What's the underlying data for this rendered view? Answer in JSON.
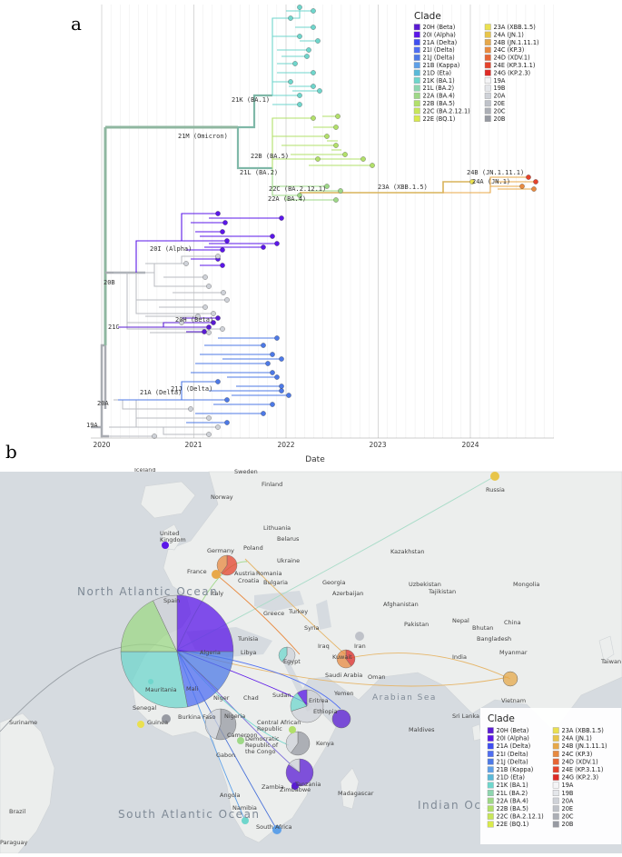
{
  "figure": {
    "panel_a_letter": "a",
    "panel_b_letter": "b"
  },
  "colors": {
    "20H (Beta)": "#5a1bd3",
    "20I (Alpha)": "#5b17e8",
    "21A (Delta)": "#3f4ff0",
    "21I (Delta)": "#4f6ef2",
    "21J (Delta)": "#4d79e6",
    "21B (Kappa)": "#5ea0e8",
    "21D (Eta)": "#5ab9d8",
    "21K (BA.1)": "#6fd6cc",
    "21L (BA.2)": "#8ed6b0",
    "22A (BA.4)": "#9ed887",
    "22B (BA.5)": "#b2e06a",
    "22C (BA.2.12.1)": "#c8e65a",
    "22E (BQ.1)": "#d9ea4c",
    "23A (XBB.1.5)": "#eae050",
    "24A (JN.1)": "#e8c54a",
    "24B (JN.1.11.1)": "#e6a84a",
    "24C (KP.3)": "#e88a40",
    "24D (XDV.1)": "#e76535",
    "24E (KP.3.1.1)": "#e5432c",
    "24G (KP.2.3)": "#de2a25",
    "19A": "#f4f4f6",
    "19B": "#e4e6ea",
    "20A": "#cfd2d8",
    "20E": "#bfc2c9",
    "20C": "#acafb6",
    "20B": "#979aa2"
  },
  "chart_data": [
    {
      "type": "tree",
      "title": "",
      "xlabel": "Date",
      "ylabel": "",
      "x_ticks": [
        "2020",
        "2021",
        "2022",
        "2023",
        "2024"
      ],
      "legend_title": "Clade",
      "legend_placement": "top-right",
      "legend_entries": [
        "20H (Beta)",
        "20I (Alpha)",
        "21A (Delta)",
        "21I (Delta)",
        "21J (Delta)",
        "21B (Kappa)",
        "21D (Eta)",
        "21K (BA.1)",
        "21L (BA.2)",
        "22A (BA.4)",
        "22B (BA.5)",
        "22C (BA.2.12.1)",
        "22E (BQ.1)",
        "23A (XBB.1.5)",
        "24A (JN.1)",
        "24B (JN.1.11.1)",
        "24C (KP.3)",
        "24D (XDV.1)",
        "24E (KP.3.1.1)",
        "24G (KP.2.3)",
        "19A",
        "19B",
        "20A",
        "20E",
        "20C",
        "20B"
      ],
      "clade_labels": [
        "21K (BA.1)",
        "21M (Omicron)",
        "22B (BA.5)",
        "21L (BA.2)",
        "22C (BA.2.12.1)",
        "22A (BA.4)",
        "23A (XBB.1.5)",
        "24B (JN.1.11.1)",
        "24A (JN.1)",
        "20I (Alpha)",
        "20B",
        "20H (Beta)",
        "21C",
        "21A (Delta)",
        "21J (Delta)",
        "20A",
        "19A"
      ],
      "grid": true
    },
    {
      "type": "map",
      "title": "",
      "legend_title": "Clade",
      "legend_placement": "bottom-right",
      "legend_entries": [
        "20H (Beta)",
        "20I (Alpha)",
        "21A (Delta)",
        "21I (Delta)",
        "21J (Delta)",
        "21B (Kappa)",
        "21D (Eta)",
        "21K (BA.1)",
        "21L (BA.2)",
        "22A (BA.4)",
        "22B (BA.5)",
        "22C (BA.2.12.1)",
        "22E (BQ.1)",
        "23A (XBB.1.5)",
        "24A (JN.1)",
        "24B (JN.1.11.1)",
        "24C (KP.3)",
        "24D (XDV.1)",
        "24E (KP.3.1.1)",
        "24G (KP.2.3)",
        "19A",
        "19B",
        "20A",
        "20E",
        "20C",
        "20B"
      ],
      "ocean_labels": [
        "North Atlantic Ocean",
        "South Atlantic Ocean",
        "Indian Ocean",
        "Arabian Sea"
      ],
      "place_labels": [
        "Iceland",
        "Sweden",
        "Finland",
        "United Kingdom",
        "Norway",
        "Lithuania",
        "Belarus",
        "Germany",
        "Poland",
        "Ukraine",
        "France",
        "Austria",
        "Romania",
        "Croatia",
        "Bulgaria",
        "Spain",
        "Italy",
        "Georgia",
        "Azerbaijan",
        "Turkey",
        "Greece",
        "Tunisia",
        "Syria",
        "Iraq",
        "Iran",
        "Algeria",
        "Libya",
        "Egypt",
        "Kuwait",
        "Saudi Arabia",
        "Oman",
        "Mauritania",
        "Mali",
        "Niger",
        "Chad",
        "Sudan",
        "Yemen",
        "Senegal",
        "Guinea",
        "Burkina Faso",
        "Nigeria",
        "Central African Republic",
        "Ethiopia",
        "Eritrea",
        "Cameroon",
        "Gabon",
        "Democratic Republic of the Congo",
        "Kenya",
        "Tanzania",
        "Angola",
        "Zambia",
        "Zimbabwe",
        "Namibia",
        "Madagascar",
        "South Africa",
        "Russia",
        "Kazakhstan",
        "Uzbekistan",
        "Tajikistan",
        "Afghanistan",
        "Pakistan",
        "Nepal",
        "Bhutan",
        "Bangladesh",
        "India",
        "Myanmar",
        "Mongolia",
        "China",
        "Taiwan",
        "Vietnam",
        "Sri Lanka",
        "Maldives",
        "Brazil",
        "Suriname",
        "Paraguay"
      ],
      "pies": [
        {
          "location": "Morocco/Algeria region",
          "slices": [
            {
              "clade": "20I (Alpha)",
              "value": 25
            },
            {
              "clade": "21J (Delta)",
              "value": 12
            },
            {
              "clade": "21I (Delta)",
              "value": 10
            },
            {
              "clade": "21K (BA.1)",
              "value": 28
            },
            {
              "clade": "22A (BA.4)",
              "value": 18
            },
            {
              "clade": "20A",
              "value": 7
            }
          ]
        },
        {
          "location": "Poland",
          "slices": [
            {
              "clade": "24E (KP.3.1.1)",
              "value": 60
            },
            {
              "clade": "24C (KP.3)",
              "value": 40
            }
          ]
        },
        {
          "location": "Saudi Arabia",
          "slices": [
            {
              "clade": "24G (KP.2.3)",
              "value": 40
            },
            {
              "clade": "24C (KP.3)",
              "value": 60
            }
          ]
        },
        {
          "location": "Myanmar",
          "slices": [
            {
              "clade": "24B (JN.1.11.1)",
              "value": 100
            }
          ]
        },
        {
          "location": "Nigeria",
          "slices": [
            {
              "clade": "20B",
              "value": 55
            },
            {
              "clade": "20A",
              "value": 45
            }
          ]
        },
        {
          "location": "Ethiopia",
          "slices": [
            {
              "clade": "20A",
              "value": 70
            },
            {
              "clade": "21K (BA.1)",
              "value": 20
            },
            {
              "clade": "20I (Alpha)",
              "value": 10
            }
          ]
        },
        {
          "location": "Kenya",
          "slices": [
            {
              "clade": "20B",
              "value": 60
            },
            {
              "clade": "20A",
              "value": 40
            }
          ]
        },
        {
          "location": "Tanzania",
          "slices": [
            {
              "clade": "20H (Beta)",
              "value": 85
            },
            {
              "clade": "20A",
              "value": 15
            }
          ]
        },
        {
          "location": "Yemen",
          "slices": [
            {
              "clade": "20H (Beta)",
              "value": 100
            }
          ]
        },
        {
          "location": "Egypt",
          "slices": [
            {
              "clade": "20A",
              "value": 60
            },
            {
              "clade": "21K (BA.1)",
              "value": 40
            }
          ]
        }
      ]
    }
  ]
}
